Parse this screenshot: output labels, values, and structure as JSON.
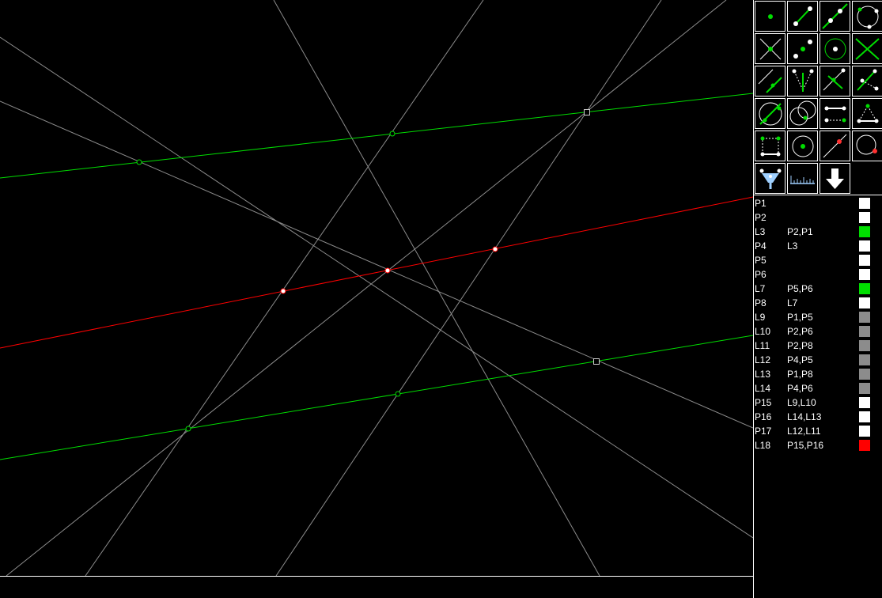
{
  "colors": {
    "background": "#000000",
    "construction_line": "#8c8c8c",
    "green_line": "#00dd00",
    "red_line": "#ff0000",
    "point_white": "#ffffff"
  },
  "toolbar": {
    "tools": [
      {
        "name": "point-tool-icon"
      },
      {
        "name": "segment-tool-icon"
      },
      {
        "name": "line-tool-icon"
      },
      {
        "name": "circle-three-points-tool-icon"
      },
      {
        "name": "intersection-tool-icon"
      },
      {
        "name": "midpoint-tool-icon"
      },
      {
        "name": "circle-center-tool-icon"
      },
      {
        "name": "line-intersection-tool-icon"
      },
      {
        "name": "parallel-tool-icon"
      },
      {
        "name": "angle-bisector-tool-icon"
      },
      {
        "name": "perpendicular-bisector-tool-icon"
      },
      {
        "name": "triangle-tool-icon"
      },
      {
        "name": "tangent-tool-icon"
      },
      {
        "name": "circle-circle-tool-icon"
      },
      {
        "name": "transfer-length-tool-icon"
      },
      {
        "name": "polygon-tool-icon"
      },
      {
        "name": "square-tool-icon"
      },
      {
        "name": "circle-radius-tool-icon"
      },
      {
        "name": "point-on-line-tool-icon"
      },
      {
        "name": "point-on-circle-tool-icon"
      },
      {
        "name": "paint-tool-icon"
      },
      {
        "name": "ruler-tool-icon"
      },
      {
        "name": "down-arrow-tool-icon"
      }
    ]
  },
  "objects": [
    {
      "name": "P1",
      "deps": "",
      "color": "#ffffff"
    },
    {
      "name": "P2",
      "deps": "",
      "color": "#ffffff"
    },
    {
      "name": "L3",
      "deps": "P2,P1",
      "color": "#00dd00"
    },
    {
      "name": "P4",
      "deps": "L3",
      "color": "#ffffff"
    },
    {
      "name": "P5",
      "deps": "",
      "color": "#ffffff"
    },
    {
      "name": "P6",
      "deps": "",
      "color": "#ffffff"
    },
    {
      "name": "L7",
      "deps": "P5,P6",
      "color": "#00dd00"
    },
    {
      "name": "P8",
      "deps": "L7",
      "color": "#ffffff"
    },
    {
      "name": "L9",
      "deps": "P1,P5",
      "color": "#8c8c8c"
    },
    {
      "name": "L10",
      "deps": "P2,P6",
      "color": "#8c8c8c"
    },
    {
      "name": "L11",
      "deps": "P2,P8",
      "color": "#8c8c8c"
    },
    {
      "name": "L12",
      "deps": "P4,P5",
      "color": "#8c8c8c"
    },
    {
      "name": "L13",
      "deps": "P1,P8",
      "color": "#8c8c8c"
    },
    {
      "name": "L14",
      "deps": "P4,P6",
      "color": "#8c8c8c"
    },
    {
      "name": "P15",
      "deps": "L9,L10",
      "color": "#ffffff"
    },
    {
      "name": "P16",
      "deps": "L14,L13",
      "color": "#ffffff"
    },
    {
      "name": "P17",
      "deps": "L12,L11",
      "color": "#ffffff"
    },
    {
      "name": "L18",
      "deps": "P15,P16",
      "color": "#ff0000"
    }
  ]
}
